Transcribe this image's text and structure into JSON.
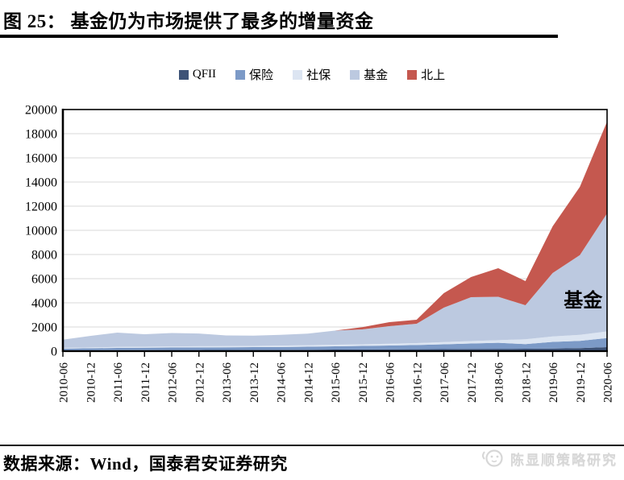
{
  "header": {
    "title": "图 25： 基金仍为市场提供了最多的增量资金"
  },
  "chart_data": {
    "type": "area",
    "stacked": true,
    "title": "图 25： 基金仍为市场提供了最多的增量资金",
    "x": [
      "2010-06",
      "2010-12",
      "2011-06",
      "2011-12",
      "2012-06",
      "2012-12",
      "2013-06",
      "2013-12",
      "2014-06",
      "2014-12",
      "2015-06",
      "2015-12",
      "2016-06",
      "2016-12",
      "2017-06",
      "2017-12",
      "2018-06",
      "2018-12",
      "2019-06",
      "2019-12",
      "2020-06"
    ],
    "series": [
      {
        "name": "QFII",
        "color": "#3E5377",
        "values": [
          60,
          70,
          80,
          85,
          90,
          95,
          100,
          105,
          110,
          120,
          130,
          140,
          150,
          160,
          170,
          180,
          190,
          200,
          220,
          250,
          330
        ]
      },
      {
        "name": "保险",
        "color": "#7C9AC7",
        "values": [
          150,
          170,
          190,
          200,
          210,
          215,
          220,
          225,
          235,
          250,
          270,
          290,
          320,
          350,
          400,
          450,
          500,
          380,
          550,
          600,
          750
        ]
      },
      {
        "name": "社保",
        "color": "#DCE5F2",
        "values": [
          60,
          70,
          80,
          85,
          90,
          95,
          100,
          105,
          110,
          120,
          130,
          140,
          150,
          160,
          180,
          200,
          220,
          400,
          450,
          500,
          550
        ]
      },
      {
        "name": "基金",
        "color": "#BCC9E0",
        "values": [
          680,
          950,
          1180,
          1030,
          1110,
          1050,
          880,
          845,
          895,
          960,
          1170,
          1230,
          1450,
          1600,
          2850,
          3640,
          3590,
          2820,
          5250,
          6600,
          9770
        ]
      },
      {
        "name": "北上",
        "color": "#C5584F",
        "values": [
          0,
          0,
          0,
          0,
          0,
          0,
          0,
          0,
          0,
          0,
          0,
          180,
          330,
          330,
          1200,
          1660,
          2370,
          2000,
          3860,
          5650,
          7600
        ]
      }
    ],
    "ylim": [
      0,
      20000
    ],
    "ytick_step": 2000,
    "grid": true,
    "grid_color": "#D9D9D9",
    "legend_position": "top",
    "annotation": {
      "text": "基金",
      "x_index": 19,
      "y": 4200
    }
  },
  "footer": {
    "source_label": "数据来源：Wind，国泰君安证券研究",
    "watermark": "陈显顺策略研究"
  }
}
